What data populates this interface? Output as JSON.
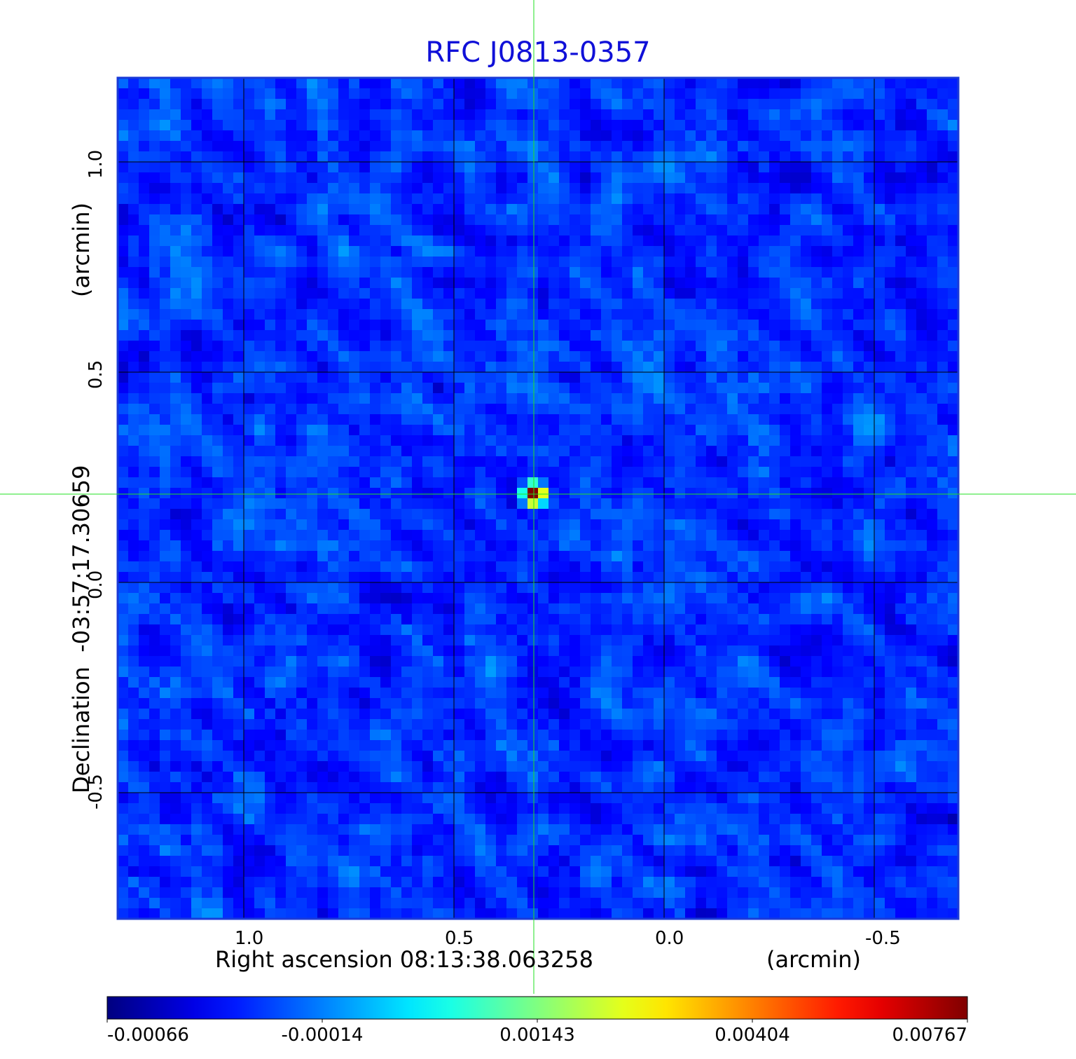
{
  "chart_data": {
    "type": "heatmap",
    "title": "RFC J0813-0357",
    "xlabel": "Right ascension  08:13:38.063258",
    "xunit": "(arcmin)",
    "ylabel": "Declination  -03:57:17.30659",
    "yunit": "(arcmin)",
    "x_range": [
      1.3,
      -0.7
    ],
    "y_range": [
      -0.8,
      1.2
    ],
    "x_ticks": [
      "1.0",
      "0.5",
      "0.0",
      "-0.5"
    ],
    "y_ticks": [
      "1.0",
      "0.5",
      "0.0",
      "-0.5"
    ],
    "x_tick_values": [
      1.0,
      0.5,
      0.0,
      -0.5
    ],
    "y_tick_values": [
      1.0,
      0.5,
      0.0,
      -0.5
    ],
    "grid": true,
    "colormap": "jet",
    "colorbar_range": [
      -0.00066,
      0.00767
    ],
    "colorbar_ticks": [
      "-0.00066",
      "-0.00014",
      "0.00143",
      "0.00404",
      "0.00767"
    ],
    "peak": {
      "x": 0.31,
      "y": 0.21,
      "value": 0.00767
    },
    "crosshair": {
      "x": 0.31,
      "y": 0.21
    },
    "colors": {
      "title": "#1010d8",
      "frame": "#1a3ad8",
      "crosshair": "#22e022",
      "grid": "#000000"
    }
  }
}
